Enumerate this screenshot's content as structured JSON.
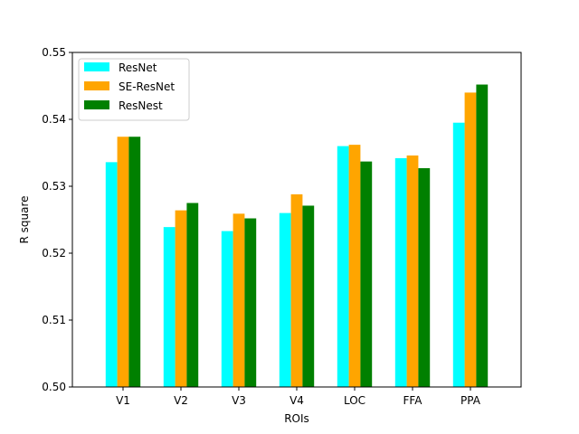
{
  "chart_data": {
    "type": "bar",
    "title": "",
    "xlabel": "ROIs",
    "ylabel": "R square",
    "categories": [
      "V1",
      "V2",
      "V3",
      "V4",
      "LOC",
      "FFA",
      "PPA"
    ],
    "series": [
      {
        "name": "ResNet",
        "color": "#00ffff",
        "values": [
          0.5336,
          0.5239,
          0.5233,
          0.526,
          0.536,
          0.5342,
          0.5395
        ]
      },
      {
        "name": "SE-ResNet",
        "color": "#ffa500",
        "values": [
          0.5374,
          0.5264,
          0.5259,
          0.5288,
          0.5362,
          0.5346,
          0.544
        ]
      },
      {
        "name": "ResNest",
        "color": "#008000",
        "values": [
          0.5374,
          0.5275,
          0.5252,
          0.5271,
          0.5337,
          0.5327,
          0.5452
        ]
      }
    ],
    "ylim": [
      0.5,
      0.55
    ],
    "yticks": [
      "0.50",
      "0.51",
      "0.52",
      "0.53",
      "0.54",
      "0.55"
    ],
    "grid": false,
    "legend_position": "top-left"
  }
}
